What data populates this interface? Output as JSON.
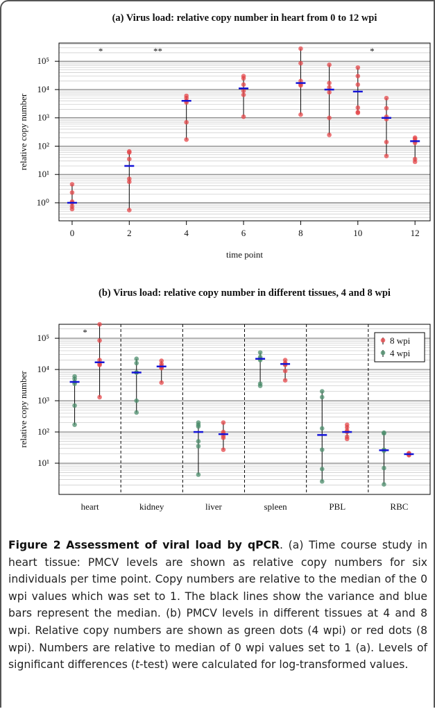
{
  "chart_data": [
    {
      "type": "scatter",
      "title": "(a) Virus load: relative copy number in heart from 0 to 12 wpi",
      "xlabel": "time point",
      "ylabel": "relative copy number",
      "x": [
        0,
        2,
        4,
        6,
        8,
        9,
        10,
        11,
        12
      ],
      "values": [
        [
          4.5,
          2.3,
          1.1,
          1.0,
          0.75,
          0.6
        ],
        [
          65,
          60,
          35,
          7,
          5.5,
          0.55
        ],
        [
          6000,
          5000,
          4000,
          3500,
          700,
          170
        ],
        [
          30000,
          25000,
          15000,
          9000,
          6500,
          1100
        ],
        [
          280000,
          85000,
          20000,
          15000,
          14000,
          1300
        ],
        [
          75000,
          17000,
          12000,
          8000,
          1000,
          250
        ],
        [
          60000,
          30000,
          15000,
          2300,
          1600,
          1500
        ],
        [
          5000,
          2200,
          1100,
          900,
          140,
          45
        ],
        [
          200,
          180,
          150,
          130,
          35,
          28
        ]
      ],
      "medians": [
        1.0,
        20,
        4000,
        11000,
        17000,
        10000,
        8500,
        1000,
        150
      ],
      "color": "#e6484b",
      "median_color": "#1212d6",
      "range_color": "#000000",
      "xlim": [
        -0.46,
        12.53
      ],
      "xticks": [
        0,
        2,
        4,
        6,
        8,
        10,
        12
      ],
      "ylim": [
        0.23,
        440000
      ],
      "log_y": true,
      "grid": true,
      "minor_grid": true,
      "yticks": [
        {
          "value": 1,
          "label": "10⁰"
        },
        {
          "value": 10,
          "label": "10¹"
        },
        {
          "value": 100,
          "label": "10²"
        },
        {
          "value": 1000,
          "label": "10³"
        },
        {
          "value": 10000,
          "label": "10⁴"
        },
        {
          "value": 100000,
          "label": "10⁵"
        }
      ],
      "annotations": [
        {
          "text": "*",
          "x": 1
        },
        {
          "text": "**",
          "x": 3
        },
        {
          "text": "*",
          "x": 10.5
        }
      ]
    },
    {
      "type": "strip",
      "title": "(b) Virus load: relative copy number in different tissues, 4 and 8 wpi",
      "ylabel": "relative copy number",
      "categories": [
        "heart",
        "kidney",
        "liver",
        "spleen",
        "PBL",
        "RBC"
      ],
      "series": [
        {
          "name": "8 wpi",
          "color": "#e6484b",
          "values": [
            [
              280000,
              85000,
              20000,
              15000,
              14000,
              1300
            ],
            [
              19000,
              15000,
              13000,
              12000,
              11000,
              3800
            ],
            [
              200,
              100,
              90,
              75,
              65,
              27
            ],
            [
              20000,
              16000,
              15000,
              14000,
              9000,
              4500
            ],
            [
              170,
              140,
              110,
              100,
              70,
              60
            ],
            [
              21,
              20,
              20,
              19,
              19,
              18
            ]
          ],
          "medians": [
            17000,
            12500,
            85,
            15000,
            100,
            19.5
          ]
        },
        {
          "name": "4 wpi",
          "color": "#4d8f6d",
          "values": [
            [
              6000,
              5000,
              4000,
              3500,
              700,
              170
            ],
            [
              22000,
              16000,
              8000,
              8000,
              1000,
              420
            ],
            [
              200,
              170,
              150,
              50,
              35,
              4.3
            ],
            [
              35000,
              25000,
              22000,
              20000,
              3500,
              3000
            ],
            [
              2000,
              1300,
              130,
              27,
              6.5,
              2.6
            ],
            [
              95,
              90,
              27,
              25,
              7,
              2.1
            ]
          ],
          "medians": [
            4000,
            8000,
            100,
            22000,
            80,
            26
          ]
        }
      ],
      "median_color": "#1212d6",
      "range_color": "#000000",
      "ylim": [
        1,
        280000
      ],
      "log_y": true,
      "grid": true,
      "minor_grid": true,
      "legend": "top right",
      "yticks": [
        {
          "value": 10,
          "label": "10¹"
        },
        {
          "value": 100,
          "label": "10²"
        },
        {
          "value": 1000,
          "label": "10³"
        },
        {
          "value": 10000,
          "label": "10⁴"
        },
        {
          "value": 100000,
          "label": "10⁵"
        }
      ],
      "annotations": [
        {
          "text": "*",
          "category": 0
        }
      ]
    }
  ],
  "caption": {
    "label": "Figure 2",
    "title": "Assessment of viral load by qPCR",
    "text_before": ". (a) Time course study in heart tissue: PMCV levels are shown as relative copy numbers for six individuals per time point. Copy numbers are relative to the median of the 0 wpi values which was set to 1. The black lines show the variance and blue bars represent the median. (b) PMCV levels in different tissues at 4 and 8 wpi. Relative copy numbers are shown as green dots (4 wpi) or red dots (8 wpi). Numbers are relative to median of 0 wpi values set to 1 (a). Levels of significant differences (",
    "text_italic": "t",
    "text_after": "-test) were calculated for log-transformed values."
  }
}
